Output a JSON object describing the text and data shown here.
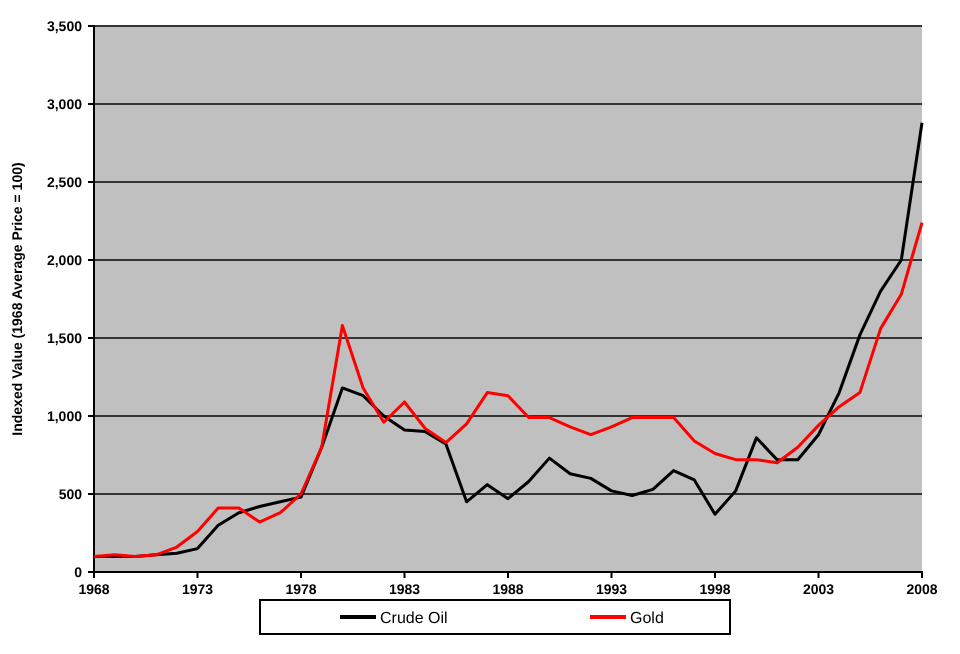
{
  "chart_data": {
    "type": "line",
    "ylabel": "Indexed Value (1968 Average Price = 100)",
    "x": [
      1968,
      1969,
      1970,
      1971,
      1972,
      1973,
      1974,
      1975,
      1976,
      1977,
      1978,
      1979,
      1980,
      1981,
      1982,
      1983,
      1984,
      1985,
      1986,
      1987,
      1988,
      1989,
      1990,
      1991,
      1992,
      1993,
      1994,
      1995,
      1996,
      1997,
      1998,
      1999,
      2000,
      2001,
      2002,
      2003,
      2004,
      2005,
      2006,
      2007,
      2008
    ],
    "series": [
      {
        "name": "Crude Oil",
        "color": "#000000",
        "values": [
          100,
          100,
          100,
          110,
          120,
          150,
          300,
          380,
          420,
          450,
          480,
          800,
          1180,
          1130,
          1000,
          910,
          900,
          820,
          450,
          560,
          470,
          580,
          730,
          630,
          600,
          520,
          490,
          530,
          650,
          590,
          370,
          520,
          860,
          720,
          720,
          880,
          1150,
          1520,
          1800,
          2000,
          2880
        ]
      },
      {
        "name": "Gold",
        "color": "#ff0000",
        "values": [
          100,
          110,
          100,
          110,
          160,
          260,
          410,
          410,
          320,
          380,
          500,
          800,
          1580,
          1180,
          960,
          1090,
          920,
          830,
          950,
          1150,
          1130,
          990,
          990,
          930,
          880,
          930,
          990,
          990,
          990,
          840,
          760,
          720,
          720,
          700,
          800,
          940,
          1060,
          1150,
          1560,
          1780,
          2240
        ]
      }
    ],
    "xlim": [
      1968,
      2008
    ],
    "xticks": [
      1968,
      1973,
      1978,
      1983,
      1988,
      1993,
      1998,
      2003,
      2008
    ],
    "ylim": [
      0,
      3500
    ],
    "yticks": [
      {
        "value": 0,
        "label": "0"
      },
      {
        "value": 500,
        "label": "500"
      },
      {
        "value": 1000,
        "label": "1,000"
      },
      {
        "value": 1500,
        "label": "1,500"
      },
      {
        "value": 2000,
        "label": "2,000"
      },
      {
        "value": 2500,
        "label": "2,500"
      },
      {
        "value": 3000,
        "label": "3,000"
      },
      {
        "value": 3500,
        "label": "3,500"
      }
    ],
    "grid": "y",
    "legend": "bottom",
    "marker": "none",
    "line_style": "solid"
  }
}
